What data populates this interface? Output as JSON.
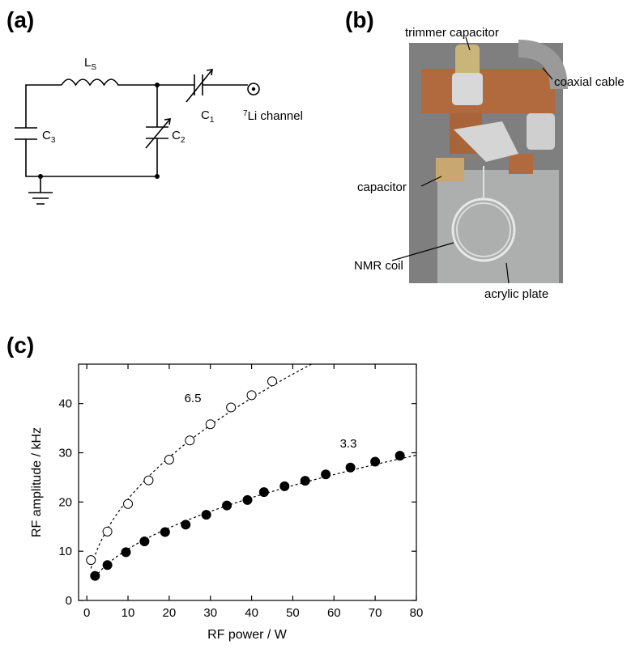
{
  "panel_labels": [
    "(a)",
    "(b)",
    "(c)"
  ],
  "circuit": {
    "inductor": {
      "text": "L",
      "sub": "S"
    },
    "c1": {
      "text": "C",
      "sub": "1"
    },
    "c2": {
      "text": "C",
      "sub": "2"
    },
    "c3": {
      "text": "C",
      "sub": "3"
    },
    "port": {
      "sup": "7",
      "text": "Li channel"
    }
  },
  "photo": {
    "labels": [
      "trimmer capacitor",
      "coaxial cable",
      "capacitor",
      "NMR coil",
      "acrylic plate"
    ]
  },
  "chart_data": {
    "type": "scatter",
    "x_label": "RF power / W",
    "y_label": "RF amplitude / kHz",
    "xlim": [
      -2,
      80
    ],
    "ylim": [
      0,
      48
    ],
    "xticks": [
      0,
      10,
      20,
      30,
      40,
      50,
      60,
      70,
      80
    ],
    "yticks": [
      0,
      10,
      20,
      30,
      40
    ],
    "series": [
      {
        "marker": "open",
        "color": "#000000",
        "x": [
          1,
          5,
          10,
          15,
          20,
          25,
          30,
          35,
          40,
          45
        ],
        "values": [
          8.2,
          14,
          19.6,
          24.4,
          28.6,
          32.5,
          35.8,
          39.2,
          41.7,
          44.5
        ]
      },
      {
        "marker": "filled",
        "color": "#000000",
        "x": [
          2,
          5,
          9.5,
          14,
          19,
          24,
          29,
          34,
          39,
          43,
          48,
          53,
          58,
          64,
          70,
          76
        ],
        "values": [
          5,
          7.2,
          9.8,
          12,
          13.9,
          15.4,
          17.4,
          19.3,
          20.4,
          22,
          23.2,
          24.3,
          25.6,
          27,
          28.2,
          29.4
        ]
      }
    ],
    "fits": [
      {
        "coefficient": 6.5
      },
      {
        "coefficient": 3.3
      }
    ]
  }
}
